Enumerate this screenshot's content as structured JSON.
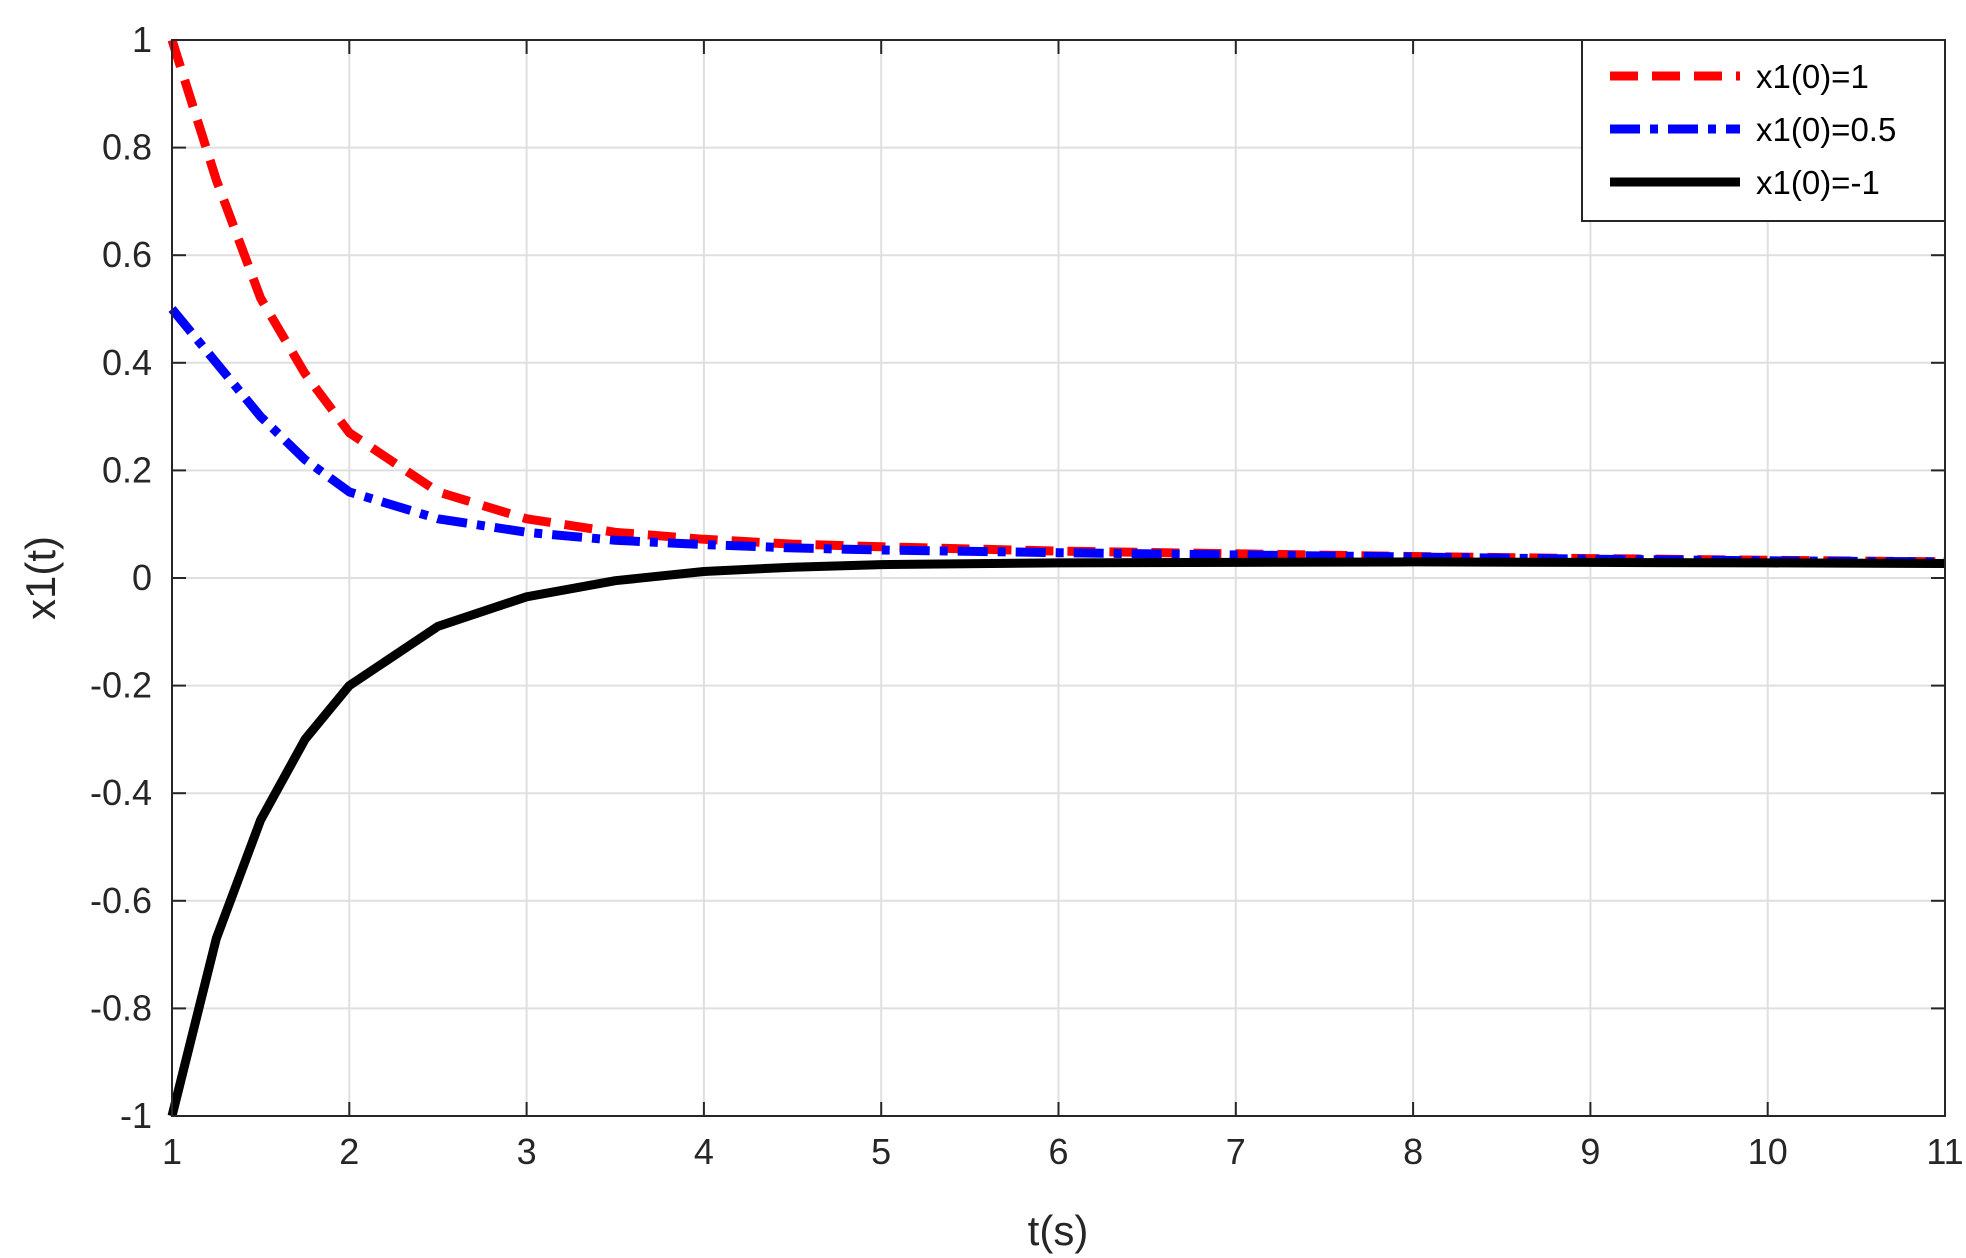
{
  "chart_data": {
    "type": "line",
    "xlabel": "t(s)",
    "ylabel": "x1(t)",
    "xlim": [
      1,
      11
    ],
    "ylim": [
      -1,
      1
    ],
    "xticks": [
      "1",
      "2",
      "3",
      "4",
      "5",
      "6",
      "7",
      "8",
      "9",
      "10",
      "11"
    ],
    "yticks": [
      "1",
      "0.8",
      "0.6",
      "0.4",
      "0.2",
      "0",
      "-0.2",
      "-0.4",
      "-0.6",
      "-0.8",
      "-1"
    ],
    "grid": true,
    "legend_position": "top-right",
    "x": [
      1,
      1.25,
      1.5,
      1.75,
      2,
      2.5,
      3,
      3.5,
      4,
      4.5,
      5,
      6,
      7,
      8,
      9,
      10,
      11
    ],
    "series": [
      {
        "name": "x1(0)=1",
        "color": "#ff0000",
        "style": "dashed",
        "values": [
          1.0,
          0.74,
          0.52,
          0.38,
          0.27,
          0.16,
          0.11,
          0.085,
          0.072,
          0.063,
          0.058,
          0.05,
          0.045,
          0.04,
          0.036,
          0.033,
          0.03
        ]
      },
      {
        "name": "x1(0)=0.5",
        "color": "#0000ff",
        "style": "dashdot",
        "values": [
          0.5,
          0.4,
          0.3,
          0.22,
          0.16,
          0.11,
          0.085,
          0.07,
          0.062,
          0.056,
          0.052,
          0.047,
          0.043,
          0.039,
          0.035,
          0.032,
          0.03
        ]
      },
      {
        "name": "x1(0)=-1",
        "color": "#000000",
        "style": "solid",
        "values": [
          -1.0,
          -0.67,
          -0.45,
          -0.3,
          -0.2,
          -0.09,
          -0.035,
          -0.005,
          0.012,
          0.02,
          0.025,
          0.028,
          0.029,
          0.03,
          0.029,
          0.028,
          0.027
        ]
      }
    ]
  }
}
